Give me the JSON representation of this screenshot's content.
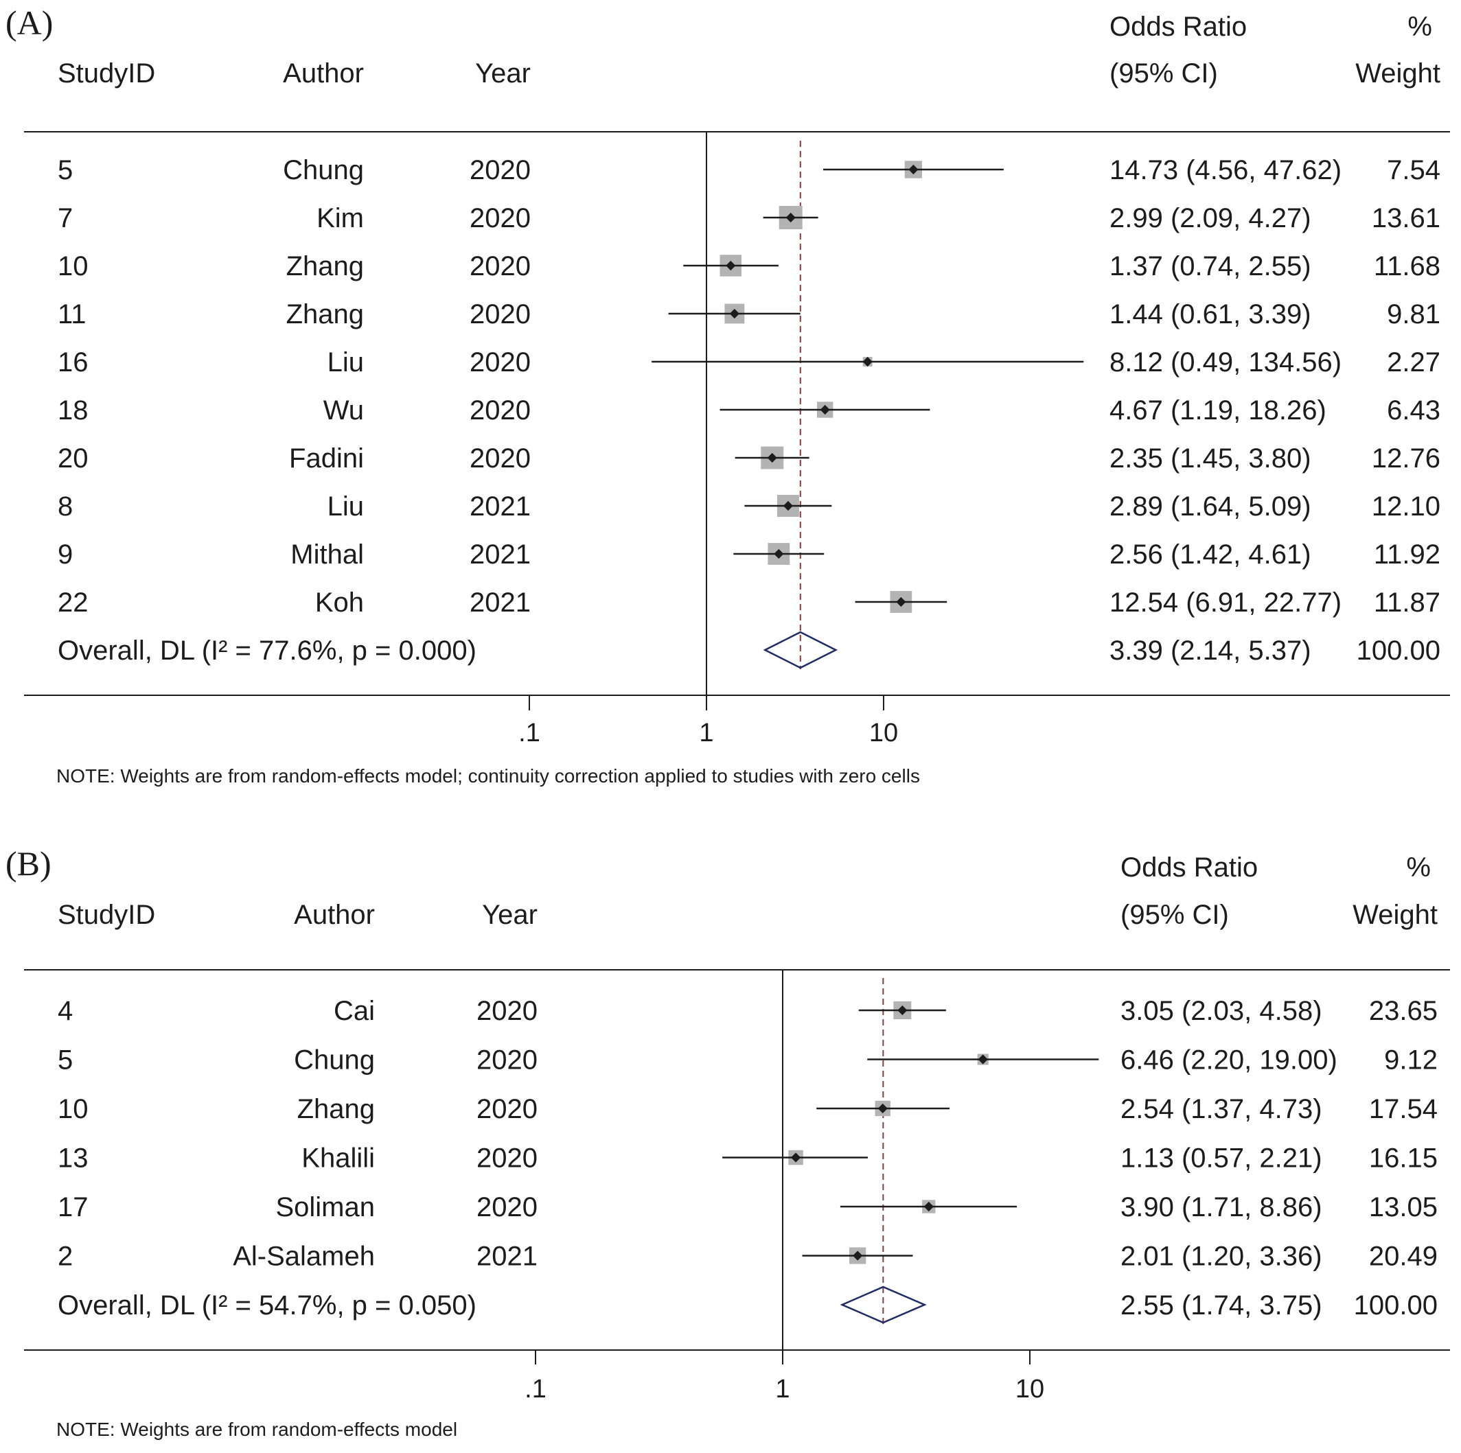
{
  "chart_data": [
    {
      "type": "forest",
      "panel_label": "(A)",
      "x_scale": "log",
      "x_ticks": [
        ".1",
        "1",
        "10"
      ],
      "null_value": 1,
      "columns": {
        "study_id": "StudyID",
        "author": "Author",
        "year": "Year",
        "or_line1": "Odds Ratio",
        "or_line2": "(95% CI)",
        "weight_line1": "%",
        "weight_line2": "Weight"
      },
      "studies": [
        {
          "study_id": "5",
          "author": "Chung",
          "year": "2020",
          "or": 14.73,
          "lo": 4.56,
          "hi": 47.62,
          "ci_text": "14.73 (4.56, 47.62)",
          "weight": 7.54,
          "weight_text": "7.54"
        },
        {
          "study_id": "7",
          "author": "Kim",
          "year": "2020",
          "or": 2.99,
          "lo": 2.09,
          "hi": 4.27,
          "ci_text": "2.99 (2.09, 4.27)",
          "weight": 13.61,
          "weight_text": "13.61"
        },
        {
          "study_id": "10",
          "author": "Zhang",
          "year": "2020",
          "or": 1.37,
          "lo": 0.74,
          "hi": 2.55,
          "ci_text": "1.37 (0.74, 2.55)",
          "weight": 11.68,
          "weight_text": "11.68"
        },
        {
          "study_id": "11",
          "author": "Zhang",
          "year": "2020",
          "or": 1.44,
          "lo": 0.61,
          "hi": 3.39,
          "ci_text": "1.44 (0.61, 3.39)",
          "weight": 9.81,
          "weight_text": "9.81"
        },
        {
          "study_id": "16",
          "author": "Liu",
          "year": "2020",
          "or": 8.12,
          "lo": 0.49,
          "hi": 134.56,
          "ci_text": "8.12 (0.49, 134.56)",
          "weight": 2.27,
          "weight_text": "2.27"
        },
        {
          "study_id": "18",
          "author": "Wu",
          "year": "2020",
          "or": 4.67,
          "lo": 1.19,
          "hi": 18.26,
          "ci_text": "4.67 (1.19, 18.26)",
          "weight": 6.43,
          "weight_text": "6.43"
        },
        {
          "study_id": "20",
          "author": "Fadini",
          "year": "2020",
          "or": 2.35,
          "lo": 1.45,
          "hi": 3.8,
          "ci_text": "2.35 (1.45, 3.80)",
          "weight": 12.76,
          "weight_text": "12.76"
        },
        {
          "study_id": "8",
          "author": "Liu",
          "year": "2021",
          "or": 2.89,
          "lo": 1.64,
          "hi": 5.09,
          "ci_text": "2.89 (1.64, 5.09)",
          "weight": 12.1,
          "weight_text": "12.10"
        },
        {
          "study_id": "9",
          "author": "Mithal",
          "year": "2021",
          "or": 2.56,
          "lo": 1.42,
          "hi": 4.61,
          "ci_text": "2.56 (1.42, 4.61)",
          "weight": 11.92,
          "weight_text": "11.92"
        },
        {
          "study_id": "22",
          "author": "Koh",
          "year": "2021",
          "or": 12.54,
          "lo": 6.91,
          "hi": 22.77,
          "ci_text": "12.54 (6.91, 22.77)",
          "weight": 11.87,
          "weight_text": "11.87"
        }
      ],
      "overall": {
        "label": "Overall, DL (I² = 77.6%, p = 0.000)",
        "or": 3.39,
        "lo": 2.14,
        "hi": 5.37,
        "ci_text": "3.39 (2.14, 5.37)",
        "weight_text": "100.00"
      },
      "note": "NOTE: Weights are from random-effects model; continuity correction applied to studies with zero cells"
    },
    {
      "type": "forest",
      "panel_label": "(B)",
      "x_scale": "log",
      "x_ticks": [
        ".1",
        "1",
        "10"
      ],
      "null_value": 1,
      "columns": {
        "study_id": "StudyID",
        "author": "Author",
        "year": "Year",
        "or_line1": "Odds Ratio",
        "or_line2": "(95% CI)",
        "weight_line1": "%",
        "weight_line2": "Weight"
      },
      "studies": [
        {
          "study_id": "4",
          "author": "Cai",
          "year": "2020",
          "or": 3.05,
          "lo": 2.03,
          "hi": 4.58,
          "ci_text": "3.05 (2.03, 4.58)",
          "weight": 23.65,
          "weight_text": "23.65"
        },
        {
          "study_id": "5",
          "author": "Chung",
          "year": "2020",
          "or": 6.46,
          "lo": 2.2,
          "hi": 19.0,
          "ci_text": "6.46 (2.20, 19.00)",
          "weight": 9.12,
          "weight_text": "9.12"
        },
        {
          "study_id": "10",
          "author": "Zhang",
          "year": "2020",
          "or": 2.54,
          "lo": 1.37,
          "hi": 4.73,
          "ci_text": "2.54 (1.37, 4.73)",
          "weight": 17.54,
          "weight_text": "17.54"
        },
        {
          "study_id": "13",
          "author": "Khalili",
          "year": "2020",
          "or": 1.13,
          "lo": 0.57,
          "hi": 2.21,
          "ci_text": "1.13 (0.57, 2.21)",
          "weight": 16.15,
          "weight_text": "16.15"
        },
        {
          "study_id": "17",
          "author": "Soliman",
          "year": "2020",
          "or": 3.9,
          "lo": 1.71,
          "hi": 8.86,
          "ci_text": "3.90 (1.71, 8.86)",
          "weight": 13.05,
          "weight_text": "13.05"
        },
        {
          "study_id": "2",
          "author": "Al-Salameh",
          "year": "2021",
          "or": 2.01,
          "lo": 1.2,
          "hi": 3.36,
          "ci_text": "2.01 (1.20, 3.36)",
          "weight": 20.49,
          "weight_text": "20.49"
        }
      ],
      "overall": {
        "label": "Overall, DL (I² = 54.7%, p = 0.050)",
        "or": 2.55,
        "lo": 1.74,
        "hi": 3.75,
        "ci_text": "2.55 (1.74, 3.75)",
        "weight_text": "100.00"
      },
      "note": "NOTE: Weights are from random-effects model"
    }
  ],
  "colors": {
    "text": "#1c1c1c",
    "box": "#b3b3b3",
    "line": "#1c1c1c",
    "diamond": "#1f2a66",
    "dashed": "#8c3a3a"
  }
}
